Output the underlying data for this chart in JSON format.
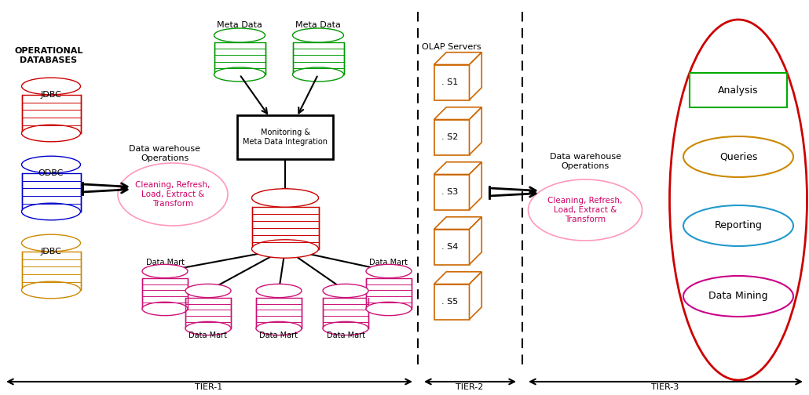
{
  "fig_width": 10.3,
  "fig_height": 5.04,
  "bg_color": "#ffffff",
  "tier1_label": "TIER-1",
  "tier2_label": "TIER-2",
  "tier3_label": "TIER-3",
  "op_db_label": "OPERATIONAL\nDATABASES",
  "olap_label": "OLAP Servers",
  "dw_ops_label1": "Data warehouse\nOperations",
  "dw_ops_label2": "Data warehouse\nOperations",
  "cleaning_label": "Cleaning, Refresh,\nLoad, Extract &\nTransform",
  "monitoring_label": "Monitoring &\nMeta Data Integration",
  "meta_data_label": "Meta Data",
  "data_mart_label": "Data Mart",
  "server_labels": [
    ". S1",
    ". S2",
    ". S3",
    ". S4",
    ". S5"
  ],
  "tier3_items": [
    {
      "label": "Analysis",
      "color": "#00aa00",
      "shape": "rect"
    },
    {
      "label": "Queries",
      "color": "#cc8800",
      "shape": "ellipse"
    },
    {
      "label": "Reporting",
      "color": "#2299cc",
      "shape": "ellipse"
    },
    {
      "label": "Data Mining",
      "color": "#cc0088",
      "shape": "ellipse"
    }
  ],
  "red": "#cc0000",
  "blue": "#0000cc",
  "orange_db": "#cc8800",
  "green": "#009900",
  "pink": "#cc1177",
  "orange_cube": "#cc6600"
}
